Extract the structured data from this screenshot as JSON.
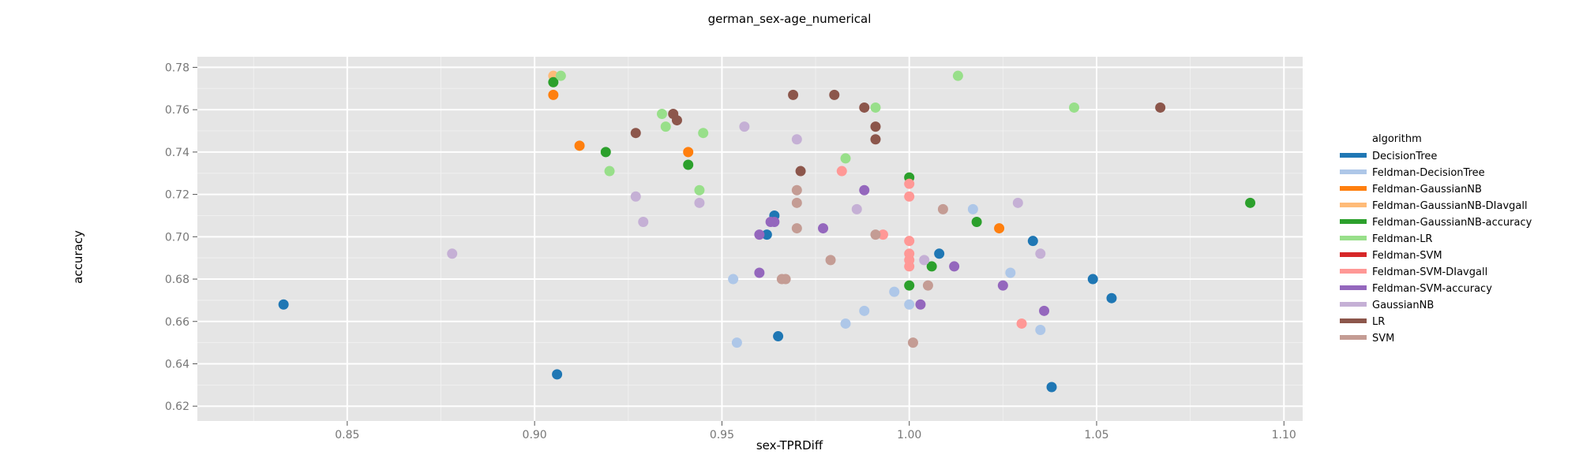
{
  "chart_data": {
    "type": "scatter",
    "title": "german_sex-age_numerical",
    "xlabel": "sex-TPRDiff",
    "ylabel": "accuracy",
    "xlim": [
      0.81,
      1.105
    ],
    "ylim": [
      0.613,
      0.785
    ],
    "xticks": [
      "0.85",
      "0.90",
      "0.95",
      "1.00",
      "1.05",
      "1.10"
    ],
    "yticks": [
      "0.62",
      "0.64",
      "0.66",
      "0.68",
      "0.70",
      "0.72",
      "0.74",
      "0.76",
      "0.78"
    ],
    "grid": true,
    "legend": {
      "title": "algorithm",
      "placement": "right"
    },
    "series": [
      {
        "name": "DecisionTree",
        "color": "#1f77b4",
        "points": [
          [
            0.833,
            0.668
          ],
          [
            0.906,
            0.635
          ],
          [
            0.962,
            0.701
          ],
          [
            0.964,
            0.71
          ],
          [
            0.965,
            0.653
          ],
          [
            1.008,
            0.692
          ],
          [
            1.033,
            0.698
          ],
          [
            1.038,
            0.629
          ],
          [
            1.049,
            0.68
          ],
          [
            1.054,
            0.671
          ]
        ]
      },
      {
        "name": "Feldman-DecisionTree",
        "color": "#aec7e8",
        "points": [
          [
            0.953,
            0.68
          ],
          [
            0.954,
            0.65
          ],
          [
            0.983,
            0.659
          ],
          [
            0.988,
            0.665
          ],
          [
            0.996,
            0.674
          ],
          [
            1.0,
            0.668
          ],
          [
            1.017,
            0.713
          ],
          [
            1.027,
            0.683
          ],
          [
            1.035,
            0.656
          ]
        ]
      },
      {
        "name": "Feldman-GaussianNB",
        "color": "#ff7f0e",
        "points": [
          [
            0.905,
            0.767
          ],
          [
            0.912,
            0.743
          ],
          [
            0.941,
            0.74
          ],
          [
            1.024,
            0.704
          ]
        ]
      },
      {
        "name": "Feldman-GaussianNB-DIavgall",
        "color": "#ffbb78",
        "points": [
          [
            0.905,
            0.776
          ]
        ]
      },
      {
        "name": "Feldman-GaussianNB-accuracy",
        "color": "#2ca02c",
        "points": [
          [
            0.905,
            0.773
          ],
          [
            0.919,
            0.74
          ],
          [
            0.941,
            0.734
          ],
          [
            1.0,
            0.728
          ],
          [
            1.0,
            0.677
          ],
          [
            1.006,
            0.686
          ],
          [
            1.018,
            0.707
          ],
          [
            1.091,
            0.716
          ]
        ]
      },
      {
        "name": "Feldman-LR",
        "color": "#98df8a",
        "points": [
          [
            0.907,
            0.776
          ],
          [
            0.92,
            0.731
          ],
          [
            0.934,
            0.758
          ],
          [
            0.935,
            0.752
          ],
          [
            0.944,
            0.722
          ],
          [
            0.945,
            0.749
          ],
          [
            0.983,
            0.737
          ],
          [
            0.991,
            0.761
          ],
          [
            1.013,
            0.776
          ],
          [
            1.044,
            0.761
          ]
        ]
      },
      {
        "name": "Feldman-SVM",
        "color": "#d62728",
        "points": []
      },
      {
        "name": "Feldman-SVM-DIavgall",
        "color": "#ff9896",
        "points": [
          [
            0.982,
            0.731
          ],
          [
            0.993,
            0.701
          ],
          [
            1.0,
            0.725
          ],
          [
            1.0,
            0.719
          ],
          [
            1.0,
            0.698
          ],
          [
            1.0,
            0.692
          ],
          [
            1.0,
            0.689
          ],
          [
            1.0,
            0.686
          ],
          [
            1.03,
            0.659
          ]
        ]
      },
      {
        "name": "Feldman-SVM-accuracy",
        "color": "#9467bd",
        "points": [
          [
            0.96,
            0.701
          ],
          [
            0.96,
            0.683
          ],
          [
            0.963,
            0.707
          ],
          [
            0.964,
            0.707
          ],
          [
            0.977,
            0.704
          ],
          [
            0.988,
            0.722
          ],
          [
            1.003,
            0.668
          ],
          [
            1.012,
            0.686
          ],
          [
            1.025,
            0.677
          ],
          [
            1.036,
            0.665
          ]
        ]
      },
      {
        "name": "GaussianNB",
        "color": "#c5b0d5",
        "points": [
          [
            0.878,
            0.692
          ],
          [
            0.927,
            0.719
          ],
          [
            0.929,
            0.707
          ],
          [
            0.944,
            0.716
          ],
          [
            0.956,
            0.752
          ],
          [
            0.97,
            0.746
          ],
          [
            0.986,
            0.713
          ],
          [
            1.004,
            0.689
          ],
          [
            1.029,
            0.716
          ],
          [
            1.035,
            0.692
          ]
        ]
      },
      {
        "name": "LR",
        "color": "#8c564b",
        "points": [
          [
            0.927,
            0.749
          ],
          [
            0.937,
            0.758
          ],
          [
            0.938,
            0.755
          ],
          [
            0.969,
            0.767
          ],
          [
            0.971,
            0.731
          ],
          [
            0.98,
            0.767
          ],
          [
            0.988,
            0.761
          ],
          [
            0.991,
            0.752
          ],
          [
            0.991,
            0.746
          ],
          [
            1.067,
            0.761
          ]
        ]
      },
      {
        "name": "SVM",
        "color": "#c49c94",
        "points": [
          [
            0.966,
            0.68
          ],
          [
            0.967,
            0.68
          ],
          [
            0.97,
            0.722
          ],
          [
            0.97,
            0.716
          ],
          [
            0.97,
            0.704
          ],
          [
            0.979,
            0.689
          ],
          [
            0.991,
            0.701
          ],
          [
            1.001,
            0.65
          ],
          [
            1.005,
            0.677
          ],
          [
            1.009,
            0.713
          ]
        ]
      }
    ]
  }
}
